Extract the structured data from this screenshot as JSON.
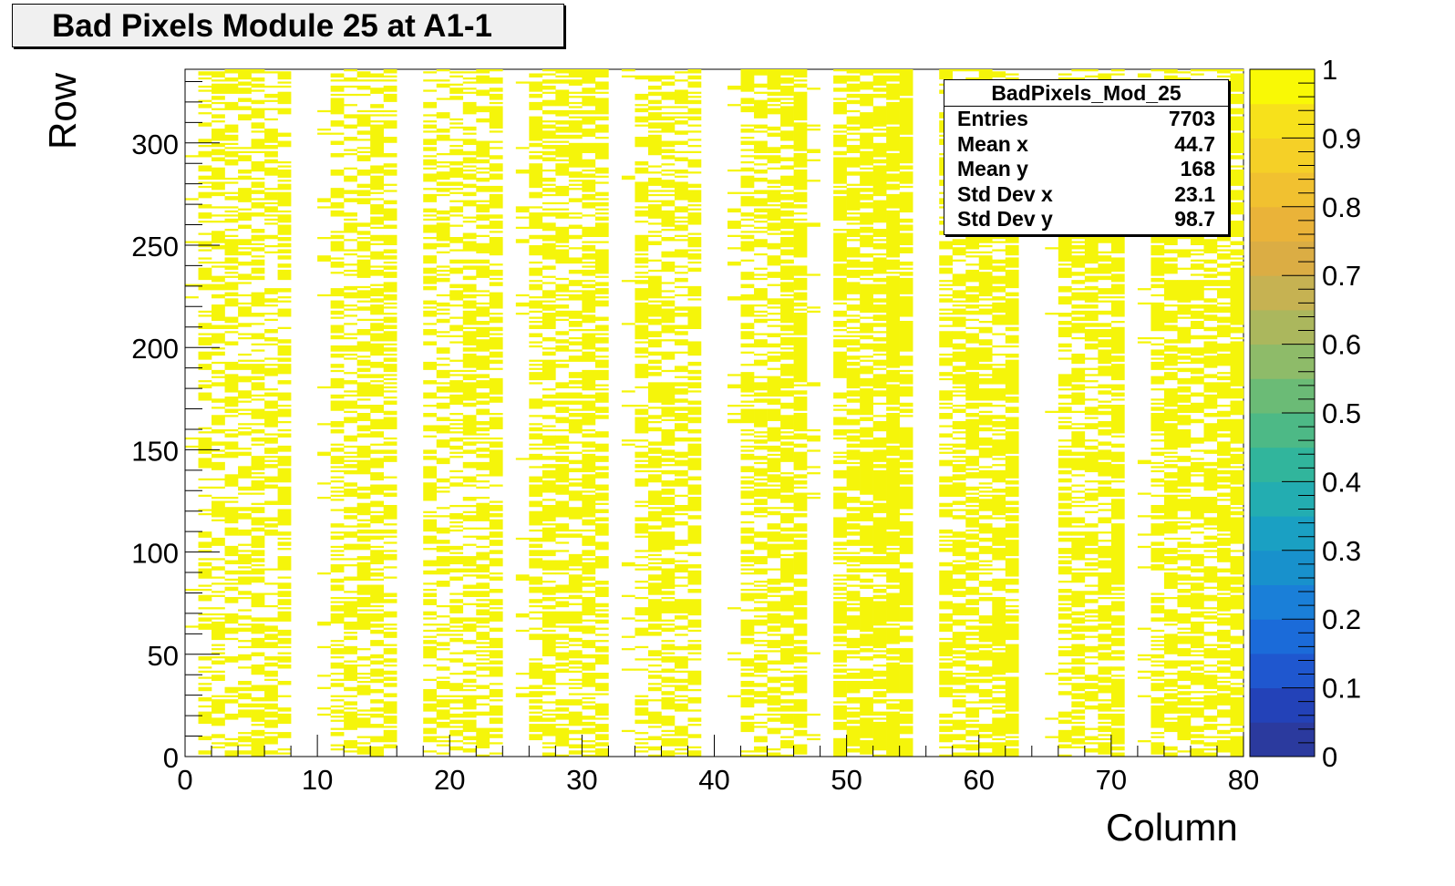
{
  "title": "Bad Pixels Module 25 at A1-1",
  "stats": {
    "name": "BadPixels_Mod_25",
    "rows": [
      {
        "label": "Entries",
        "value": "7703"
      },
      {
        "label": "Mean x",
        "value": "44.7"
      },
      {
        "label": "Mean y",
        "value": "168"
      },
      {
        "label": "Std Dev x",
        "value": "23.1"
      },
      {
        "label": "Std Dev y",
        "value": "98.7"
      }
    ]
  },
  "colors": {
    "hit": "#f5f50a",
    "palette_low": "#2b3a9e",
    "palette_high": "#f9f905"
  },
  "chart_data": {
    "type": "heatmap",
    "title": "Bad Pixels Module 25 at A1-1",
    "xlabel": "Column",
    "ylabel": "Row",
    "xlim": [
      0,
      80
    ],
    "ylim": [
      0,
      336
    ],
    "x_ticks": [
      "0",
      "10",
      "20",
      "30",
      "40",
      "50",
      "60",
      "70",
      "80"
    ],
    "y_ticks": [
      "0",
      "50",
      "100",
      "150",
      "200",
      "250",
      "300"
    ],
    "z_range": [
      0,
      1
    ],
    "z_ticks": [
      "0",
      "0.1",
      "0.2",
      "0.3",
      "0.4",
      "0.5",
      "0.6",
      "0.7",
      "0.8",
      "0.9",
      "1"
    ],
    "entries": 7703,
    "column_occupancy": [
      0.05,
      0.38,
      0.4,
      0.42,
      0.4,
      0.45,
      0.4,
      0.5,
      0.0,
      0.0,
      0.05,
      0.4,
      0.4,
      0.45,
      0.5,
      0.45,
      0.0,
      0.0,
      0.42,
      0.38,
      0.4,
      0.5,
      0.45,
      0.55,
      0.0,
      0.05,
      0.45,
      0.5,
      0.48,
      0.45,
      0.55,
      0.55,
      0.0,
      0.05,
      0.35,
      0.45,
      0.5,
      0.45,
      0.5,
      0.0,
      0.0,
      0.05,
      0.42,
      0.45,
      0.5,
      0.6,
      0.65,
      0.05,
      0.0,
      0.55,
      0.55,
      0.6,
      0.6,
      0.75,
      0.7,
      0.0,
      0.0,
      0.5,
      0.55,
      0.55,
      0.55,
      0.6,
      0.65,
      0.0,
      0.0,
      0.05,
      0.45,
      0.5,
      0.45,
      0.5,
      0.65,
      0.0,
      0.05,
      0.5,
      0.55,
      0.5,
      0.55,
      0.55,
      0.6,
      0.7
    ]
  }
}
